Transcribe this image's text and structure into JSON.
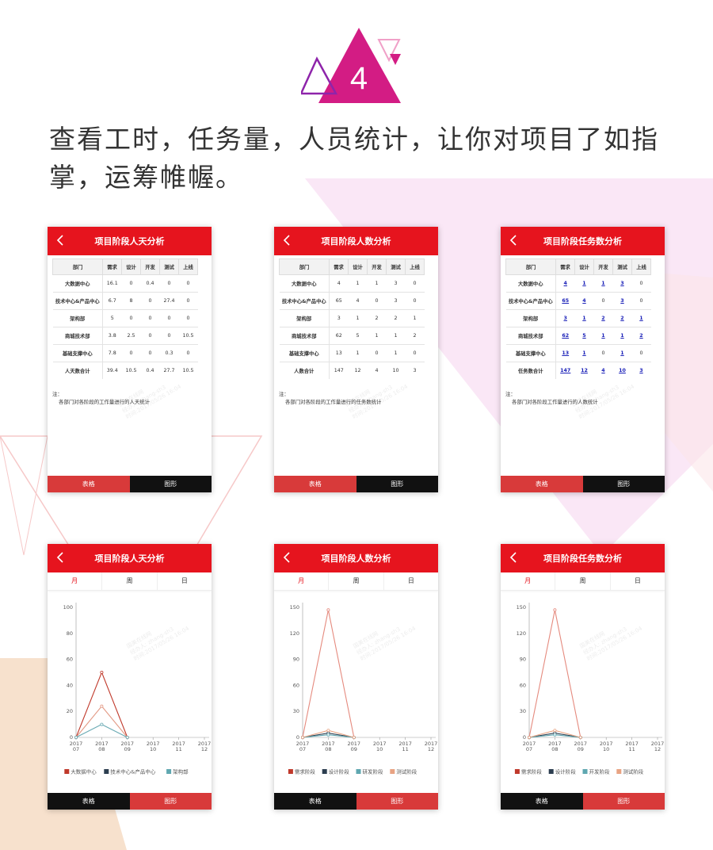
{
  "badge": {
    "number": "4"
  },
  "headline": "查看工时，任务量，人员统计，让你对项目了如指掌，运筹帷幄。",
  "common": {
    "tab_table": "表格",
    "tab_chart": "图形",
    "periods": [
      "月",
      "周",
      "日"
    ],
    "note_label": "注：",
    "watermark": [
      "国美在线网",
      "经办人: zhang-sh3",
      "时间:2017/05/26 16:04"
    ]
  },
  "table_screens": [
    {
      "title": "项目阶段人天分析",
      "headers": [
        "部门",
        "需求",
        "设计",
        "开发",
        "测试",
        "上线"
      ],
      "rows": [
        [
          "大数据中心",
          "16.1",
          "0",
          "0.4",
          "0",
          "0"
        ],
        [
          "技术中心&产品中心",
          "6.7",
          "8",
          "0",
          "27.4",
          "0"
        ],
        [
          "架构部",
          "5",
          "0",
          "0",
          "0",
          "0"
        ],
        [
          "商城技术部",
          "3.8",
          "2.5",
          "0",
          "0",
          "10.5"
        ],
        [
          "基础支撑中心",
          "7.8",
          "0",
          "0",
          "0.3",
          "0"
        ],
        [
          "人天数合计",
          "39.4",
          "10.5",
          "0.4",
          "27.7",
          "10.5"
        ]
      ],
      "links": false,
      "note": "各部门对各阶段的工作量进行的人天统计"
    },
    {
      "title": "项目阶段人数分析",
      "headers": [
        "部门",
        "需求",
        "设计",
        "开发",
        "测试",
        "上线"
      ],
      "rows": [
        [
          "大数据中心",
          "4",
          "1",
          "1",
          "3",
          "0"
        ],
        [
          "技术中心&产品中心",
          "65",
          "4",
          "0",
          "3",
          "0"
        ],
        [
          "架构部",
          "3",
          "1",
          "2",
          "2",
          "1"
        ],
        [
          "商城技术部",
          "62",
          "5",
          "1",
          "1",
          "2"
        ],
        [
          "基础支撑中心",
          "13",
          "1",
          "0",
          "1",
          "0"
        ],
        [
          "人数合计",
          "147",
          "12",
          "4",
          "10",
          "3"
        ]
      ],
      "links": false,
      "note": "各部门对各阶段的工作量进行的任务数统计"
    },
    {
      "title": "项目阶段任务数分析",
      "headers": [
        "部门",
        "需求",
        "设计",
        "开发",
        "测试",
        "上线"
      ],
      "rows": [
        [
          "大数据中心",
          "4",
          "1",
          "1",
          "3",
          "0"
        ],
        [
          "技术中心&产品中心",
          "65",
          "4",
          "0",
          "3",
          "0"
        ],
        [
          "架构部",
          "3",
          "1",
          "2",
          "2",
          "1"
        ],
        [
          "商城技术部",
          "62",
          "5",
          "1",
          "1",
          "2"
        ],
        [
          "基础支撑中心",
          "13",
          "1",
          "0",
          "1",
          "0"
        ],
        [
          "任务数合计",
          "147",
          "12",
          "4",
          "10",
          "3"
        ]
      ],
      "links": true,
      "note": "各部门对各阶段工作量进行的人数统计"
    }
  ],
  "chart_screens": [
    {
      "title": "项目阶段人天分析"
    },
    {
      "title": "项目阶段人数分析"
    },
    {
      "title": "项目阶段任务数分析"
    }
  ],
  "chart_data": [
    {
      "type": "line",
      "x": [
        "2017 07",
        "2017 08",
        "2017 09",
        "2017 10",
        "2017 11",
        "2017 12"
      ],
      "ylim": [
        0,
        100
      ],
      "yticks": [
        0,
        20,
        40,
        60,
        80,
        100
      ],
      "series": [
        {
          "name": "大数据中心",
          "color": "#c0392b",
          "values": [
            0,
            50,
            0,
            null,
            null,
            null
          ]
        },
        {
          "name": "技术中心&产品中心",
          "color": "#e39a85",
          "values": [
            0,
            24,
            0,
            null,
            null,
            null
          ]
        },
        {
          "name": "架构部",
          "color": "#6aaab4",
          "values": [
            0,
            10,
            0,
            null,
            null,
            null
          ]
        }
      ],
      "legend_colors": [
        "#c0392b",
        "#2c3e50",
        "#5fa7b0"
      ],
      "legend_position": "bottom"
    },
    {
      "type": "line",
      "x": [
        "2017 07",
        "2017 08",
        "2017 09",
        "2017 10",
        "2017 11",
        "2017 12"
      ],
      "ylim": [
        0,
        150
      ],
      "yticks": [
        0,
        30,
        60,
        90,
        120,
        150
      ],
      "series": [
        {
          "name": "需求阶段",
          "color": "#e58a7e",
          "values": [
            0,
            147,
            0,
            null,
            null,
            null
          ]
        },
        {
          "name": "设计阶段",
          "color": "#2c3e50",
          "values": [
            0,
            5,
            0,
            null,
            null,
            null
          ]
        },
        {
          "name": "研发阶段",
          "color": "#5fa7b0",
          "values": [
            0,
            3,
            0,
            null,
            null,
            null
          ]
        },
        {
          "name": "测试阶段",
          "color": "#e8a383",
          "values": [
            0,
            8,
            0,
            null,
            null,
            null
          ]
        }
      ],
      "legend_colors": [
        "#c0392b",
        "#2c3e50",
        "#5fa7b0",
        "#e8a383"
      ],
      "legend_position": "bottom"
    },
    {
      "type": "line",
      "x": [
        "2017 07",
        "2017 08",
        "2017 09",
        "2017 10",
        "2017 11",
        "2017 12"
      ],
      "ylim": [
        0,
        150
      ],
      "yticks": [
        0,
        30,
        60,
        90,
        120,
        150
      ],
      "series": [
        {
          "name": "需求阶段",
          "color": "#e58a7e",
          "values": [
            0,
            147,
            0,
            null,
            null,
            null
          ]
        },
        {
          "name": "设计阶段",
          "color": "#2c3e50",
          "values": [
            0,
            5,
            0,
            null,
            null,
            null
          ]
        },
        {
          "name": "开发阶段",
          "color": "#5fa7b0",
          "values": [
            0,
            3,
            0,
            null,
            null,
            null
          ]
        },
        {
          "name": "测试阶段",
          "color": "#e8a383",
          "values": [
            0,
            8,
            0,
            null,
            null,
            null
          ]
        }
      ],
      "legend_colors": [
        "#c0392b",
        "#2c3e50",
        "#5fa7b0",
        "#e8a383"
      ],
      "legend_position": "bottom"
    }
  ]
}
